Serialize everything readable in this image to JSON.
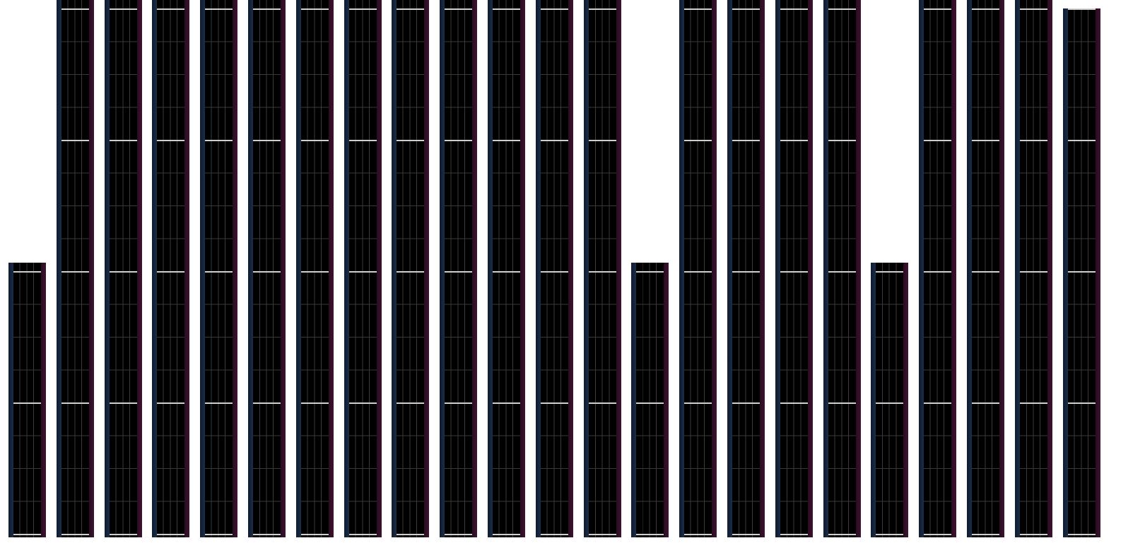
{
  "colors": {
    "background": "#ffffff",
    "column_fill": "#000000",
    "left_edge": "#1b2d48",
    "right_edge": "#3d1230",
    "grid_minor": "#3a3a3a",
    "grid_major": "#cfcfcf"
  },
  "columns": [
    {
      "level": "half"
    },
    {
      "level": "full"
    },
    {
      "level": "full"
    },
    {
      "level": "full"
    },
    {
      "level": "full"
    },
    {
      "level": "full"
    },
    {
      "level": "full"
    },
    {
      "level": "full"
    },
    {
      "level": "full"
    },
    {
      "level": "full"
    },
    {
      "level": "full"
    },
    {
      "level": "full"
    },
    {
      "level": "full"
    },
    {
      "level": "half"
    },
    {
      "level": "full"
    },
    {
      "level": "full"
    },
    {
      "level": "full"
    },
    {
      "level": "full"
    },
    {
      "level": "half"
    },
    {
      "level": "full"
    },
    {
      "level": "full"
    },
    {
      "level": "full"
    },
    {
      "level": "top"
    }
  ]
}
